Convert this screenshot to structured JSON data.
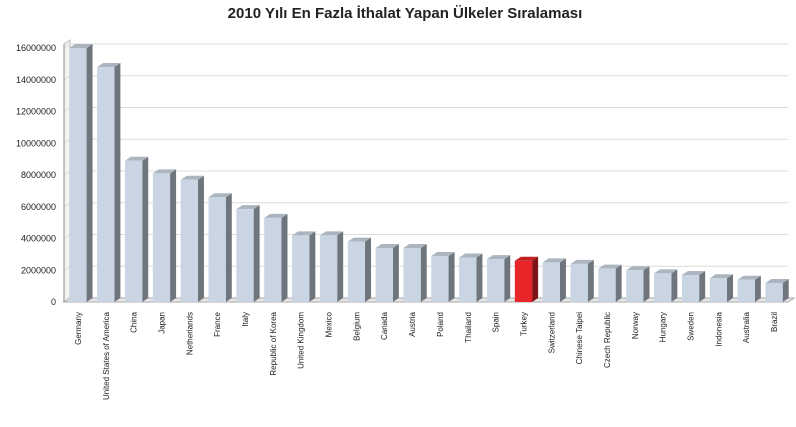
{
  "chart_data": {
    "type": "bar3d",
    "title": "2010 Yılı En Fazla İthalat Yapan Ülkeler Sıralaması",
    "categories": [
      "Germany",
      "United States of America",
      "China",
      "Japan",
      "Netherlands",
      "France",
      "Italy",
      "Republic of Korea",
      "United Kingdom",
      "Mexico",
      "Belgium",
      "Canada",
      "Austria",
      "Poland",
      "Thailand",
      "Spain",
      "Turkey",
      "Switzerland",
      "Chinese Taipei",
      "Czech Republic",
      "Norway",
      "Hungary",
      "Sweden",
      "Indonesia",
      "Australia",
      "Brazil"
    ],
    "values": [
      16000000,
      14800000,
      8900000,
      8100000,
      7700000,
      6600000,
      5850000,
      5300000,
      4200000,
      4200000,
      3800000,
      3400000,
      3400000,
      2900000,
      2800000,
      2700000,
      2600000,
      2500000,
      2400000,
      2100000,
      2000000,
      1800000,
      1700000,
      1500000,
      1400000,
      1200000
    ],
    "colors": [
      "#c9d5e2",
      "#c9d5e2",
      "#c9d5e2",
      "#c9d5e2",
      "#c9d5e2",
      "#c9d5e2",
      "#c9d5e2",
      "#c9d5e2",
      "#c9d5e2",
      "#c9d5e2",
      "#c9d5e2",
      "#c9d5e2",
      "#c9d5e2",
      "#c9d5e2",
      "#c9d5e2",
      "#c9d5e2",
      "#e8262a",
      "#c9d5e2",
      "#c9d5e2",
      "#c9d5e2",
      "#c9d5e2",
      "#c9d5e2",
      "#c9d5e2",
      "#c9d5e2",
      "#c9d5e2",
      "#c9d5e2"
    ],
    "ylim": [
      0,
      16000000
    ],
    "yticks": [
      0,
      2000000,
      4000000,
      6000000,
      8000000,
      10000000,
      12000000,
      14000000,
      16000000
    ],
    "grid": true
  }
}
